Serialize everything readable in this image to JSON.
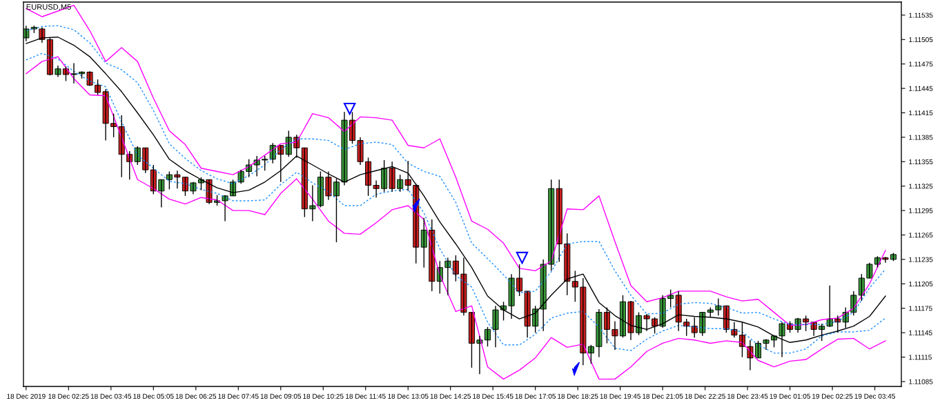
{
  "chart_data": {
    "type": "candlestick",
    "title": "EURUSD,M5",
    "x": [
      "2019-12-18T01:05",
      "2019-12-18T01:20",
      "2019-12-18T01:35",
      "2019-12-18T01:50",
      "2019-12-18T02:05",
      "2019-12-18T02:20",
      "2019-12-18T02:35",
      "2019-12-18T02:50",
      "2019-12-18T03:05",
      "2019-12-18T03:20",
      "2019-12-18T03:35",
      "2019-12-18T03:50",
      "2019-12-18T04:05",
      "2019-12-18T04:20",
      "2019-12-18T04:35",
      "2019-12-18T04:50",
      "2019-12-18T05:05",
      "2019-12-18T05:20",
      "2019-12-18T05:35",
      "2019-12-18T05:50",
      "2019-12-18T06:05",
      "2019-12-18T06:20",
      "2019-12-18T06:35",
      "2019-12-18T06:50",
      "2019-12-18T07:05",
      "2019-12-18T07:20",
      "2019-12-18T07:35",
      "2019-12-18T07:50",
      "2019-12-18T08:05",
      "2019-12-18T08:20",
      "2019-12-18T08:35",
      "2019-12-18T08:50",
      "2019-12-18T09:05",
      "2019-12-18T09:20",
      "2019-12-18T09:35",
      "2019-12-18T09:50",
      "2019-12-18T10:05",
      "2019-12-18T10:20",
      "2019-12-18T10:35",
      "2019-12-18T10:50",
      "2019-12-18T11:05",
      "2019-12-18T11:20",
      "2019-12-18T11:35",
      "2019-12-18T11:50",
      "2019-12-18T12:05",
      "2019-12-18T12:20",
      "2019-12-18T12:35",
      "2019-12-18T12:50",
      "2019-12-18T13:05",
      "2019-12-18T13:20",
      "2019-12-18T13:35",
      "2019-12-18T13:50",
      "2019-12-18T14:05",
      "2019-12-18T14:20",
      "2019-12-18T14:35",
      "2019-12-18T14:50",
      "2019-12-18T15:05",
      "2019-12-18T15:20",
      "2019-12-18T15:35",
      "2019-12-18T15:50",
      "2019-12-18T16:05",
      "2019-12-18T16:20",
      "2019-12-18T16:35",
      "2019-12-18T16:50",
      "2019-12-18T17:05",
      "2019-12-18T17:20",
      "2019-12-18T17:35",
      "2019-12-18T17:50",
      "2019-12-18T18:05",
      "2019-12-18T18:20",
      "2019-12-18T18:35",
      "2019-12-18T18:50",
      "2019-12-18T19:05",
      "2019-12-18T19:20",
      "2019-12-18T19:35",
      "2019-12-18T19:50",
      "2019-12-18T20:05",
      "2019-12-18T20:20",
      "2019-12-18T20:35",
      "2019-12-18T20:50",
      "2019-12-18T21:05",
      "2019-12-18T21:20",
      "2019-12-18T21:35",
      "2019-12-18T21:50",
      "2019-12-18T22:05",
      "2019-12-18T22:20",
      "2019-12-18T22:35",
      "2019-12-18T22:50",
      "2019-12-18T23:05",
      "2019-12-18T23:20",
      "2019-12-18T23:35",
      "2019-12-18T23:50",
      "2019-12-19T00:05",
      "2019-12-19T00:20",
      "2019-12-19T00:35",
      "2019-12-19T00:50",
      "2019-12-19T01:05",
      "2019-12-19T01:20",
      "2019-12-19T01:35",
      "2019-12-19T01:50",
      "2019-12-19T02:05",
      "2019-12-19T02:20",
      "2019-12-19T02:35",
      "2019-12-19T02:50",
      "2019-12-19T03:05",
      "2019-12-19T03:20",
      "2019-12-19T03:35",
      "2019-12-19T03:50",
      "2019-12-19T04:05",
      "2019-12-19T04:20"
    ],
    "ohlc": [
      [
        1.11507,
        1.11522,
        1.11503,
        1.11518
      ],
      [
        1.11518,
        1.11522,
        1.11513,
        1.1152
      ],
      [
        1.11518,
        1.1152,
        1.11501,
        1.11505
      ],
      [
        1.11505,
        1.11507,
        1.11461,
        1.11462
      ],
      [
        1.11462,
        1.11473,
        1.11459,
        1.11469
      ],
      [
        1.11469,
        1.11472,
        1.11454,
        1.11462
      ],
      [
        1.11462,
        1.11476,
        1.11451,
        1.11463
      ],
      [
        1.11463,
        1.11466,
        1.11457,
        1.11465
      ],
      [
        1.11465,
        1.11466,
        1.11448,
        1.11449
      ],
      [
        1.11449,
        1.11456,
        1.11437,
        1.1144
      ],
      [
        1.11441,
        1.11444,
        1.11381,
        1.11402
      ],
      [
        1.11402,
        1.11414,
        1.11385,
        1.11398
      ],
      [
        1.11398,
        1.11412,
        1.11336,
        1.11364
      ],
      [
        1.11364,
        1.11368,
        1.11333,
        1.11355
      ],
      [
        1.11355,
        1.11374,
        1.11351,
        1.11372
      ],
      [
        1.11372,
        1.11372,
        1.11341,
        1.11345
      ],
      [
        1.11345,
        1.11351,
        1.11315,
        1.11319
      ],
      [
        1.11319,
        1.11333,
        1.11299,
        1.11333
      ],
      [
        1.11333,
        1.11343,
        1.11321,
        1.11339
      ],
      [
        1.11339,
        1.11344,
        1.11322,
        1.11336
      ],
      [
        1.11336,
        1.11336,
        1.11313,
        1.11319
      ],
      [
        1.11319,
        1.1133,
        1.11315,
        1.11329
      ],
      [
        1.11329,
        1.11336,
        1.1132,
        1.11333
      ],
      [
        1.11333,
        1.11333,
        1.11303,
        1.11305
      ],
      [
        1.11305,
        1.11314,
        1.11301,
        1.11307
      ],
      [
        1.11307,
        1.11314,
        1.11282,
        1.11313
      ],
      [
        1.11313,
        1.11333,
        1.11313,
        1.1133
      ],
      [
        1.1133,
        1.11345,
        1.11328,
        1.11343
      ],
      [
        1.11343,
        1.11358,
        1.11336,
        1.11351
      ],
      [
        1.11351,
        1.11362,
        1.11337,
        1.11357
      ],
      [
        1.11357,
        1.11362,
        1.11344,
        1.11358
      ],
      [
        1.11358,
        1.11378,
        1.11353,
        1.11375
      ],
      [
        1.11375,
        1.11375,
        1.1133,
        1.11364
      ],
      [
        1.11364,
        1.11393,
        1.11361,
        1.11385
      ],
      [
        1.11385,
        1.11388,
        1.1136,
        1.11372
      ],
      [
        1.11372,
        1.11372,
        1.11287,
        1.11297
      ],
      [
        1.11297,
        1.11326,
        1.11282,
        1.11301
      ],
      [
        1.11301,
        1.11343,
        1.11299,
        1.11336
      ],
      [
        1.11336,
        1.11343,
        1.11308,
        1.11313
      ],
      [
        1.11313,
        1.11334,
        1.11256,
        1.1133
      ],
      [
        1.1133,
        1.11416,
        1.11326,
        1.11406
      ],
      [
        1.11406,
        1.11416,
        1.11377,
        1.11381
      ],
      [
        1.11381,
        1.11385,
        1.11351,
        1.11355
      ],
      [
        1.11355,
        1.1136,
        1.11313,
        1.11326
      ],
      [
        1.11326,
        1.11332,
        1.11311,
        1.11322
      ],
      [
        1.11322,
        1.11357,
        1.11318,
        1.11347
      ],
      [
        1.11347,
        1.11355,
        1.11318,
        1.11322
      ],
      [
        1.11322,
        1.11339,
        1.11318,
        1.11333
      ],
      [
        1.11333,
        1.11356,
        1.11319,
        1.11326
      ],
      [
        1.11326,
        1.11328,
        1.1123,
        1.1125
      ],
      [
        1.1125,
        1.11286,
        1.11225,
        1.11271
      ],
      [
        1.11271,
        1.11284,
        1.11196,
        1.11208
      ],
      [
        1.11208,
        1.11233,
        1.11193,
        1.11225
      ],
      [
        1.11225,
        1.11237,
        1.11191,
        1.11233
      ],
      [
        1.11233,
        1.1124,
        1.11208,
        1.11217
      ],
      [
        1.11217,
        1.11237,
        1.11166,
        1.1117
      ],
      [
        1.1117,
        1.1117,
        1.11102,
        1.11132
      ],
      [
        1.11132,
        1.11141,
        1.11094,
        1.11136
      ],
      [
        1.11136,
        1.11152,
        1.11128,
        1.11149
      ],
      [
        1.11149,
        1.11178,
        1.11127,
        1.11173
      ],
      [
        1.11173,
        1.11183,
        1.1116,
        1.11178
      ],
      [
        1.11178,
        1.11217,
        1.11162,
        1.11212
      ],
      [
        1.11212,
        1.11229,
        1.1119,
        1.11196
      ],
      [
        1.11196,
        1.11196,
        1.11139,
        1.11153
      ],
      [
        1.11153,
        1.11178,
        1.11145,
        1.11174
      ],
      [
        1.11174,
        1.11235,
        1.11147,
        1.11229
      ],
      [
        1.11229,
        1.11333,
        1.11221,
        1.11322
      ],
      [
        1.11322,
        1.11333,
        1.11232,
        1.11254
      ],
      [
        1.11254,
        1.11267,
        1.11191,
        1.11208
      ],
      [
        1.11208,
        1.11221,
        1.11183,
        1.11201
      ],
      [
        1.11201,
        1.11212,
        1.11105,
        1.1112
      ],
      [
        1.1112,
        1.1113,
        1.11107,
        1.11128
      ],
      [
        1.11128,
        1.11174,
        1.11115,
        1.1117
      ],
      [
        1.1117,
        1.11176,
        1.11132,
        1.11149
      ],
      [
        1.11149,
        1.11159,
        1.11124,
        1.11141
      ],
      [
        1.11141,
        1.11191,
        1.11139,
        1.11183
      ],
      [
        1.11183,
        1.11184,
        1.11136,
        1.11145
      ],
      [
        1.11145,
        1.1117,
        1.11142,
        1.11166
      ],
      [
        1.11166,
        1.11168,
        1.11147,
        1.11162
      ],
      [
        1.11162,
        1.11164,
        1.11144,
        1.11153
      ],
      [
        1.11153,
        1.11191,
        1.11151,
        1.11187
      ],
      [
        1.11187,
        1.11198,
        1.11176,
        1.11191
      ],
      [
        1.11191,
        1.11196,
        1.11147,
        1.11158
      ],
      [
        1.11158,
        1.11162,
        1.11141,
        1.11153
      ],
      [
        1.11153,
        1.11164,
        1.11139,
        1.11145
      ],
      [
        1.11145,
        1.1117,
        1.11141,
        1.1117
      ],
      [
        1.1117,
        1.11176,
        1.11164,
        1.11173
      ],
      [
        1.11173,
        1.11187,
        1.11166,
        1.11178
      ],
      [
        1.11178,
        1.11178,
        1.11145,
        1.11149
      ],
      [
        1.11149,
        1.11158,
        1.11139,
        1.11142
      ],
      [
        1.11142,
        1.11158,
        1.11115,
        1.11128
      ],
      [
        1.11128,
        1.11136,
        1.11099,
        1.11114
      ],
      [
        1.11114,
        1.11135,
        1.11114,
        1.11132
      ],
      [
        1.11132,
        1.11137,
        1.11124,
        1.11136
      ],
      [
        1.11136,
        1.11142,
        1.11127,
        1.11141
      ],
      [
        1.11141,
        1.11158,
        1.11115,
        1.11156
      ],
      [
        1.11156,
        1.11159,
        1.11145,
        1.11149
      ],
      [
        1.11149,
        1.11163,
        1.11145,
        1.11162
      ],
      [
        1.11162,
        1.11166,
        1.11147,
        1.11158
      ],
      [
        1.11158,
        1.11158,
        1.11141,
        1.11149
      ],
      [
        1.11149,
        1.11156,
        1.11135,
        1.11153
      ],
      [
        1.11153,
        1.11203,
        1.11152,
        1.11162
      ],
      [
        1.11162,
        1.11166,
        1.11145,
        1.11158
      ],
      [
        1.11158,
        1.11176,
        1.11151,
        1.1117
      ],
      [
        1.1117,
        1.11196,
        1.11166,
        1.11191
      ],
      [
        1.11191,
        1.11217,
        1.11184,
        1.11212
      ],
      [
        1.11212,
        1.11231,
        1.11212,
        1.11229
      ],
      [
        1.11229,
        1.11239,
        1.11225,
        1.11237
      ],
      [
        1.11237,
        1.11238,
        1.11231,
        1.11235
      ],
      [
        1.11235,
        1.11243,
        1.11233,
        1.11241
      ]
    ],
    "colors": [
      "#3a9a3a",
      "#3a9a3a",
      "#cc1f1f",
      "#cc1f1f",
      "#3a9a3a",
      "#cc1f1f",
      "#3a9a3a",
      "#3a9a3a",
      "#cc1f1f",
      "#cc1f1f",
      "#cc1f1f",
      "#cc1f1f",
      "#cc1f1f",
      "#cc1f1f",
      "#3a9a3a",
      "#cc1f1f",
      "#cc1f1f",
      "#3a9a3a",
      "#3a9a3a",
      "#cc1f1f",
      "#cc1f1f",
      "#3a9a3a",
      "#3a9a3a",
      "#cc1f1f",
      "#3a9a3a",
      "#3a9a3a",
      "#3a9a3a",
      "#3a9a3a",
      "#3a9a3a",
      "#3a9a3a",
      "#3a9a3a",
      "#3a9a3a",
      "#cc1f1f",
      "#3a9a3a",
      "#cc1f1f",
      "#cc1f1f",
      "#3a9a3a",
      "#3a9a3a",
      "#cc1f1f",
      "#3a9a3a",
      "#3a9a3a",
      "#cc1f1f",
      "#cc1f1f",
      "#cc1f1f",
      "#cc1f1f",
      "#3a9a3a",
      "#cc1f1f",
      "#3a9a3a",
      "#cc1f1f",
      "#cc1f1f",
      "#3a9a3a",
      "#cc1f1f",
      "#3a9a3a",
      "#3a9a3a",
      "#cc1f1f",
      "#cc1f1f",
      "#cc1f1f",
      "#3a9a3a",
      "#3a9a3a",
      "#3a9a3a",
      "#3a9a3a",
      "#3a9a3a",
      "#cc1f1f",
      "#cc1f1f",
      "#3a9a3a",
      "#3a9a3a",
      "#3a9a3a",
      "#cc1f1f",
      "#cc1f1f",
      "#cc1f1f",
      "#cc1f1f",
      "#3a9a3a",
      "#3a9a3a",
      "#cc1f1f",
      "#cc1f1f",
      "#3a9a3a",
      "#cc1f1f",
      "#3a9a3a",
      "#cc1f1f",
      "#cc1f1f",
      "#3a9a3a",
      "#3a9a3a",
      "#cc1f1f",
      "#cc1f1f",
      "#cc1f1f",
      "#3a9a3a",
      "#3a9a3a",
      "#3a9a3a",
      "#cc1f1f",
      "#cc1f1f",
      "#cc1f1f",
      "#cc1f1f",
      "#3a9a3a",
      "#3a9a3a",
      "#3a9a3a",
      "#3a9a3a",
      "#cc1f1f",
      "#3a9a3a",
      "#cc1f1f",
      "#cc1f1f",
      "#3a9a3a",
      "#3a9a3a",
      "#cc1f1f",
      "#3a9a3a",
      "#3a9a3a",
      "#3a9a3a",
      "#3a9a3a",
      "#3a9a3a",
      "#cc1f1f",
      "#3a9a3a"
    ],
    "xlim": [
      "2019-12-18T01:00",
      "2019-12-19T04:35"
    ],
    "xticks": [
      {
        "value": "2019-12-18T01:05",
        "label": "18 Dec 2019"
      },
      {
        "value": "2019-12-18T02:25",
        "label": "18 Dec 02:25"
      },
      {
        "value": "2019-12-18T03:45",
        "label": "18 Dec 03:45"
      },
      {
        "value": "2019-12-18T05:05",
        "label": "18 Dec 05:05"
      },
      {
        "value": "2019-12-18T06:25",
        "label": "18 Dec 06:25"
      },
      {
        "value": "2019-12-18T07:45",
        "label": "18 Dec 07:45"
      },
      {
        "value": "2019-12-18T09:05",
        "label": "18 Dec 09:05"
      },
      {
        "value": "2019-12-18T10:25",
        "label": "18 Dec 10:25"
      },
      {
        "value": "2019-12-18T11:45",
        "label": "18 Dec 11:45"
      },
      {
        "value": "2019-12-18T13:05",
        "label": "18 Dec 13:05"
      },
      {
        "value": "2019-12-18T14:25",
        "label": "18 Dec 14:25"
      },
      {
        "value": "2019-12-18T15:45",
        "label": "18 Dec 15:45"
      },
      {
        "value": "2019-12-18T17:05",
        "label": "18 Dec 17:05"
      },
      {
        "value": "2019-12-18T18:25",
        "label": "18 Dec 18:25"
      },
      {
        "value": "2019-12-18T19:45",
        "label": "18 Dec 19:45"
      },
      {
        "value": "2019-12-18T21:05",
        "label": "18 Dec 21:05"
      },
      {
        "value": "2019-12-18T22:25",
        "label": "18 Dec 22:25"
      },
      {
        "value": "2019-12-18T23:45",
        "label": "18 Dec 23:45"
      },
      {
        "value": "2019-12-19T01:05",
        "label": "19 Dec 01:05"
      },
      {
        "value": "2019-12-19T02:25",
        "label": "19 Dec 02:25"
      },
      {
        "value": "2019-12-19T03:45",
        "label": "19 Dec 03:45"
      }
    ],
    "ylim": [
      1.11079,
      1.11551
    ],
    "yticks": [
      1.11085,
      1.11115,
      1.11145,
      1.11175,
      1.11205,
      1.11235,
      1.11265,
      1.11295,
      1.11325,
      1.11355,
      1.11385,
      1.11415,
      1.11445,
      1.11475,
      1.11505,
      1.11535
    ],
    "series": [
      {
        "type": "line",
        "color": "#ff00ff",
        "line_style": "solid",
        "x": [
          "2019-12-18T01:05",
          "2019-12-18T01:35",
          "2019-12-18T02:05",
          "2019-12-18T02:35",
          "2019-12-18T03:05",
          "2019-12-18T03:35",
          "2019-12-18T04:05",
          "2019-12-18T04:35",
          "2019-12-18T05:05",
          "2019-12-18T05:35",
          "2019-12-18T06:05",
          "2019-12-18T06:35",
          "2019-12-18T07:05",
          "2019-12-18T07:35",
          "2019-12-18T08:05",
          "2019-12-18T08:35",
          "2019-12-18T09:05",
          "2019-12-18T09:35",
          "2019-12-18T10:05",
          "2019-12-18T10:35",
          "2019-12-18T11:05",
          "2019-12-18T11:35",
          "2019-12-18T12:05",
          "2019-12-18T12:35",
          "2019-12-18T13:05",
          "2019-12-18T13:35",
          "2019-12-18T14:05",
          "2019-12-18T14:35",
          "2019-12-18T15:05",
          "2019-12-18T15:35",
          "2019-12-18T16:05",
          "2019-12-18T16:35",
          "2019-12-18T17:05",
          "2019-12-18T17:35",
          "2019-12-18T18:05",
          "2019-12-18T18:35",
          "2019-12-18T19:05",
          "2019-12-18T19:35",
          "2019-12-18T20:05",
          "2019-12-18T20:35",
          "2019-12-18T21:05",
          "2019-12-18T21:35",
          "2019-12-18T22:05",
          "2019-12-18T22:35",
          "2019-12-18T23:05",
          "2019-12-18T23:35",
          "2019-12-19T00:05",
          "2019-12-19T00:35",
          "2019-12-19T01:05",
          "2019-12-19T01:35",
          "2019-12-19T02:05",
          "2019-12-19T02:35",
          "2019-12-19T03:05",
          "2019-12-19T03:35",
          "2019-12-19T04:05"
        ],
        "values": [
          1.11543,
          1.11533,
          1.1154,
          1.11547,
          1.11516,
          1.11478,
          1.11495,
          1.11478,
          1.11433,
          1.11393,
          1.11376,
          1.11347,
          1.11343,
          1.11339,
          1.11349,
          1.11363,
          1.11377,
          1.11379,
          1.11414,
          1.11409,
          1.11392,
          1.1141,
          1.11409,
          1.11406,
          1.11375,
          1.11372,
          1.11383,
          1.11336,
          1.11282,
          1.11272,
          1.11255,
          1.11224,
          1.11221,
          1.11233,
          1.11297,
          1.11296,
          1.11313,
          1.11257,
          1.11203,
          1.11183,
          1.11188,
          1.11196,
          1.11196,
          1.11196,
          1.11189,
          1.11184,
          1.11186,
          1.1117,
          1.11154,
          1.11155,
          1.11161,
          1.11163,
          1.11175,
          1.11205,
          1.11246
        ]
      },
      {
        "type": "line",
        "color": "#1e90ff",
        "line_style": "dashed",
        "x": [
          "2019-12-18T01:05",
          "2019-12-18T01:35",
          "2019-12-18T02:05",
          "2019-12-18T02:35",
          "2019-12-18T03:05",
          "2019-12-18T03:35",
          "2019-12-18T04:05",
          "2019-12-18T04:35",
          "2019-12-18T05:05",
          "2019-12-18T05:35",
          "2019-12-18T06:05",
          "2019-12-18T06:35",
          "2019-12-18T07:05",
          "2019-12-18T07:35",
          "2019-12-18T08:05",
          "2019-12-18T08:35",
          "2019-12-18T09:05",
          "2019-12-18T09:35",
          "2019-12-18T10:05",
          "2019-12-18T10:35",
          "2019-12-18T11:05",
          "2019-12-18T11:35",
          "2019-12-18T12:05",
          "2019-12-18T12:35",
          "2019-12-18T13:05",
          "2019-12-18T13:35",
          "2019-12-18T14:05",
          "2019-12-18T14:35",
          "2019-12-18T15:05",
          "2019-12-18T15:35",
          "2019-12-18T16:05",
          "2019-12-18T16:35",
          "2019-12-18T17:05",
          "2019-12-18T17:35",
          "2019-12-18T18:05",
          "2019-12-18T18:35",
          "2019-12-18T19:05",
          "2019-12-18T19:35",
          "2019-12-18T20:05",
          "2019-12-18T20:35",
          "2019-12-18T21:05",
          "2019-12-18T21:35",
          "2019-12-18T22:05",
          "2019-12-18T22:35",
          "2019-12-18T23:05",
          "2019-12-18T23:35",
          "2019-12-19T00:05",
          "2019-12-19T00:35",
          "2019-12-19T01:05",
          "2019-12-19T01:35",
          "2019-12-19T02:05",
          "2019-12-19T02:35",
          "2019-12-19T03:05",
          "2019-12-19T03:35",
          "2019-12-19T04:05"
        ],
        "values": [
          1.11516,
          1.11521,
          1.11522,
          1.11517,
          1.11501,
          1.11476,
          1.11468,
          1.11452,
          1.11418,
          1.11377,
          1.11359,
          1.11344,
          1.11334,
          1.11328,
          1.11338,
          1.11351,
          1.1137,
          1.11383,
          1.11383,
          1.11381,
          1.1137,
          1.11377,
          1.11379,
          1.11376,
          1.11353,
          1.11343,
          1.11337,
          1.11305,
          1.11255,
          1.11236,
          1.11216,
          1.11194,
          1.11196,
          1.1122,
          1.11254,
          1.11257,
          1.11257,
          1.11221,
          1.11191,
          1.11168,
          1.11169,
          1.1118,
          1.11182,
          1.11181,
          1.11176,
          1.11169,
          1.1117,
          1.11162,
          1.11155,
          1.11155,
          1.11155,
          1.11159,
          1.1117,
          1.112,
          1.11223
        ]
      },
      {
        "type": "line",
        "color": "#000000",
        "line_style": "solid",
        "x": [
          "2019-12-18T01:05",
          "2019-12-18T01:35",
          "2019-12-18T02:05",
          "2019-12-18T02:35",
          "2019-12-18T03:05",
          "2019-12-18T03:35",
          "2019-12-18T04:05",
          "2019-12-18T04:35",
          "2019-12-18T05:05",
          "2019-12-18T05:35",
          "2019-12-18T06:05",
          "2019-12-18T06:35",
          "2019-12-18T07:05",
          "2019-12-18T07:35",
          "2019-12-18T08:05",
          "2019-12-18T08:35",
          "2019-12-18T09:05",
          "2019-12-18T09:35",
          "2019-12-18T10:05",
          "2019-12-18T10:35",
          "2019-12-18T11:05",
          "2019-12-18T11:35",
          "2019-12-18T12:05",
          "2019-12-18T12:35",
          "2019-12-18T13:05",
          "2019-12-18T13:35",
          "2019-12-18T14:05",
          "2019-12-18T14:35",
          "2019-12-18T15:05",
          "2019-12-18T15:35",
          "2019-12-18T16:05",
          "2019-12-18T16:35",
          "2019-12-18T17:05",
          "2019-12-18T17:35",
          "2019-12-18T18:05",
          "2019-12-18T18:35",
          "2019-12-18T19:05",
          "2019-12-18T19:35",
          "2019-12-18T20:05",
          "2019-12-18T20:35",
          "2019-12-18T21:05",
          "2019-12-18T21:35",
          "2019-12-18T22:05",
          "2019-12-18T22:35",
          "2019-12-18T23:05",
          "2019-12-18T23:35",
          "2019-12-19T00:05",
          "2019-12-19T00:35",
          "2019-12-19T01:05",
          "2019-12-19T01:35",
          "2019-12-19T02:05",
          "2019-12-19T02:35",
          "2019-12-19T03:05",
          "2019-12-19T03:35",
          "2019-12-19T04:05"
        ],
        "values": [
          1.115,
          1.11507,
          1.11508,
          1.11498,
          1.11484,
          1.11463,
          1.11441,
          1.11415,
          1.11388,
          1.11358,
          1.11344,
          1.11333,
          1.11323,
          1.11317,
          1.1132,
          1.1133,
          1.11344,
          1.11362,
          1.11351,
          1.1134,
          1.1133,
          1.11339,
          1.11344,
          1.11349,
          1.11341,
          1.11313,
          1.11281,
          1.11254,
          1.11225,
          1.1119,
          1.11173,
          1.11162,
          1.11169,
          1.11191,
          1.11211,
          1.11217,
          1.11182,
          1.11166,
          1.11154,
          1.11149,
          1.11156,
          1.11167,
          1.11165,
          1.11164,
          1.11162,
          1.11158,
          1.11152,
          1.11141,
          1.11133,
          1.11136,
          1.11142,
          1.11147,
          1.11153,
          1.11165,
          1.1119
        ]
      },
      {
        "type": "line",
        "color": "#1e90ff",
        "line_style": "dashed",
        "x": [
          "2019-12-18T01:05",
          "2019-12-18T01:35",
          "2019-12-18T02:05",
          "2019-12-18T02:35",
          "2019-12-18T03:05",
          "2019-12-18T03:35",
          "2019-12-18T04:05",
          "2019-12-18T04:35",
          "2019-12-18T05:05",
          "2019-12-18T05:35",
          "2019-12-18T06:05",
          "2019-12-18T06:35",
          "2019-12-18T07:05",
          "2019-12-18T07:35",
          "2019-12-18T08:05",
          "2019-12-18T08:35",
          "2019-12-18T09:05",
          "2019-12-18T09:35",
          "2019-12-18T10:05",
          "2019-12-18T10:35",
          "2019-12-18T11:05",
          "2019-12-18T11:35",
          "2019-12-18T12:05",
          "2019-12-18T12:35",
          "2019-12-18T13:05",
          "2019-12-18T13:35",
          "2019-12-18T14:05",
          "2019-12-18T14:35",
          "2019-12-18T15:05",
          "2019-12-18T15:35",
          "2019-12-18T16:05",
          "2019-12-18T16:35",
          "2019-12-18T17:05",
          "2019-12-18T17:35",
          "2019-12-18T18:05",
          "2019-12-18T18:35",
          "2019-12-18T19:05",
          "2019-12-18T19:35",
          "2019-12-18T20:05",
          "2019-12-18T20:35",
          "2019-12-18T21:05",
          "2019-12-18T21:35",
          "2019-12-18T22:05",
          "2019-12-18T22:35",
          "2019-12-18T23:05",
          "2019-12-18T23:35",
          "2019-12-19T00:05",
          "2019-12-19T00:35",
          "2019-12-19T01:05",
          "2019-12-19T01:35",
          "2019-12-19T02:05",
          "2019-12-19T02:35",
          "2019-12-19T03:05",
          "2019-12-19T03:35",
          "2019-12-19T04:05"
        ],
        "values": [
          1.1148,
          1.11488,
          1.11481,
          1.11466,
          1.11454,
          1.11447,
          1.11404,
          1.11363,
          1.11347,
          1.11331,
          1.11328,
          1.11321,
          1.11316,
          1.11307,
          1.11307,
          1.11308,
          1.11327,
          1.11342,
          1.11329,
          1.11318,
          1.11301,
          1.11301,
          1.11315,
          1.11319,
          1.11321,
          1.11292,
          1.11248,
          1.11215,
          1.11201,
          1.11158,
          1.1113,
          1.1113,
          1.11143,
          1.11163,
          1.11169,
          1.11171,
          1.11152,
          1.11126,
          1.11123,
          1.11137,
          1.11147,
          1.11154,
          1.11152,
          1.1115,
          1.1115,
          1.11146,
          1.1113,
          1.1112,
          1.1112,
          1.11125,
          1.11141,
          1.11146,
          1.11146,
          1.11148,
          1.11163
        ]
      },
      {
        "type": "line",
        "color": "#ff00ff",
        "line_style": "solid",
        "x": [
          "2019-12-18T01:05",
          "2019-12-18T01:35",
          "2019-12-18T02:05",
          "2019-12-18T02:35",
          "2019-12-18T03:05",
          "2019-12-18T03:35",
          "2019-12-18T04:05",
          "2019-12-18T04:35",
          "2019-12-18T05:05",
          "2019-12-18T05:35",
          "2019-12-18T06:05",
          "2019-12-18T06:35",
          "2019-12-18T07:05",
          "2019-12-18T07:35",
          "2019-12-18T08:05",
          "2019-12-18T08:35",
          "2019-12-18T09:05",
          "2019-12-18T09:35",
          "2019-12-18T10:05",
          "2019-12-18T10:35",
          "2019-12-18T11:05",
          "2019-12-18T11:35",
          "2019-12-18T12:05",
          "2019-12-18T12:35",
          "2019-12-18T13:05",
          "2019-12-18T13:35",
          "2019-12-18T14:05",
          "2019-12-18T14:35",
          "2019-12-18T15:05",
          "2019-12-18T15:35",
          "2019-12-18T16:05",
          "2019-12-18T16:35",
          "2019-12-18T17:05",
          "2019-12-18T17:35",
          "2019-12-18T18:05",
          "2019-12-18T18:35",
          "2019-12-18T19:05",
          "2019-12-18T19:35",
          "2019-12-18T20:05",
          "2019-12-18T20:35",
          "2019-12-18T21:05",
          "2019-12-18T21:35",
          "2019-12-18T22:05",
          "2019-12-18T22:35",
          "2019-12-18T23:05",
          "2019-12-18T23:35",
          "2019-12-19T00:05",
          "2019-12-19T00:35",
          "2019-12-19T01:05",
          "2019-12-19T01:35",
          "2019-12-19T02:05",
          "2019-12-19T02:35",
          "2019-12-19T03:05",
          "2019-12-19T03:35",
          "2019-12-19T04:05"
        ],
        "values": [
          1.11463,
          1.11478,
          1.11484,
          1.11457,
          1.11437,
          1.11436,
          1.11385,
          1.11333,
          1.11322,
          1.11309,
          1.11303,
          1.11311,
          1.11308,
          1.11295,
          1.11295,
          1.1129,
          1.11316,
          1.11334,
          1.11309,
          1.11282,
          1.11267,
          1.11266,
          1.1128,
          1.11296,
          1.11301,
          1.11284,
          1.11216,
          1.11171,
          1.11178,
          1.11103,
          1.11088,
          1.11099,
          1.11114,
          1.11139,
          1.11127,
          1.11131,
          1.11088,
          1.11088,
          1.11103,
          1.11122,
          1.11132,
          1.11138,
          1.11136,
          1.11132,
          1.11135,
          1.11133,
          1.11111,
          1.11103,
          1.1111,
          1.11112,
          1.11125,
          1.11137,
          1.11138,
          1.11125,
          1.11135
        ]
      },
      {
        "type": "scatter",
        "marker": "triangle",
        "color": "#0000ff",
        "x": [
          "2019-12-18T11:15",
          "2019-12-18T16:40"
        ],
        "values": [
          1.1142,
          1.11237
        ]
      }
    ]
  }
}
